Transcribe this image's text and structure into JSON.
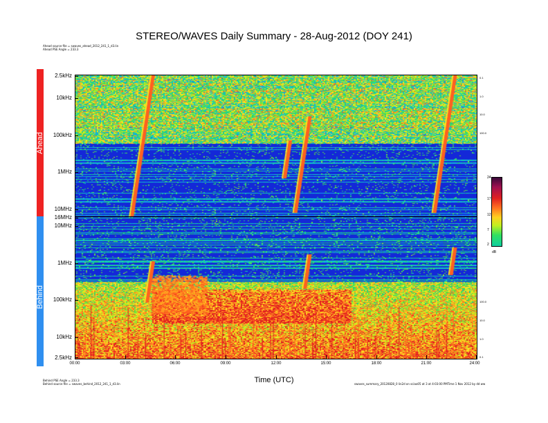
{
  "chart_data": {
    "type": "heatmap",
    "title": "STEREO/WAVES Daily Summary - 28-Aug-2012 (DOY 241)",
    "xlabel": "Time (UTC)",
    "x_ticks": [
      "00:00",
      "03:00",
      "06:00",
      "09:00",
      "12:00",
      "15:00",
      "18:00",
      "21:00",
      "24:00"
    ],
    "panels": [
      {
        "name": "Ahead",
        "y_ticks": [
          "2.5kHz",
          "10kHz",
          "100kHz",
          "1MHz",
          "10MHz"
        ],
        "right_ticks": [
          "0.1",
          "1.0",
          "10.0",
          "100.0"
        ]
      },
      {
        "name": "Behind",
        "y_ticks": [
          "16MHz",
          "10MHz",
          "1MHz",
          "100kHz",
          "10kHz",
          "2.5kHz"
        ],
        "right_ticks": [
          "100.0",
          "10.0",
          "1.0",
          "0.1"
        ]
      }
    ],
    "colorbar": {
      "ticks": [
        "24",
        "17",
        "12",
        "7",
        "2"
      ],
      "unit": "dB",
      "range": [
        2,
        24
      ]
    },
    "header_notes": [
      "Ahead source file = swaves_ahead_2012_241_1_d3.lin",
      "Ahead PSE Angle = 233.3"
    ],
    "footer_notes": [
      "Behind PSE Angle = 233.3",
      "Behind source file = swaves_behind_2012_241_1_d3.lin"
    ],
    "footer_right": "swaves_summary_20120828_0 lin2d on sciao05 at 3 at 4:03:00 PMTime 1 Nov 2012 by dd ww",
    "events": [
      {
        "panel": "Ahead",
        "type": "type III burst",
        "time_utc": "04:40"
      },
      {
        "panel": "Ahead",
        "type": "type III burst",
        "time_utc": "12:50"
      },
      {
        "panel": "Ahead",
        "type": "type III burst",
        "time_utc": "14:00"
      },
      {
        "panel": "Ahead",
        "type": "type III burst",
        "time_utc": "22:40"
      },
      {
        "panel": "Behind",
        "type": "type III burst",
        "time_utc": "04:40"
      },
      {
        "panel": "Behind",
        "type": "type III burst",
        "time_utc": "14:00"
      },
      {
        "panel": "Behind",
        "type": "type III burst",
        "time_utc": "22:40"
      }
    ]
  },
  "colors": {
    "ahead_bar": "#ee2222",
    "behind_bar": "#2f8ff0",
    "background_blue": "#1428d8",
    "noise_low": "#12a0f0",
    "noise_mid": "#1fd0a0",
    "noise_high": "#ffe020",
    "burst": "#ff6020",
    "burst_peak": "#c01010"
  }
}
